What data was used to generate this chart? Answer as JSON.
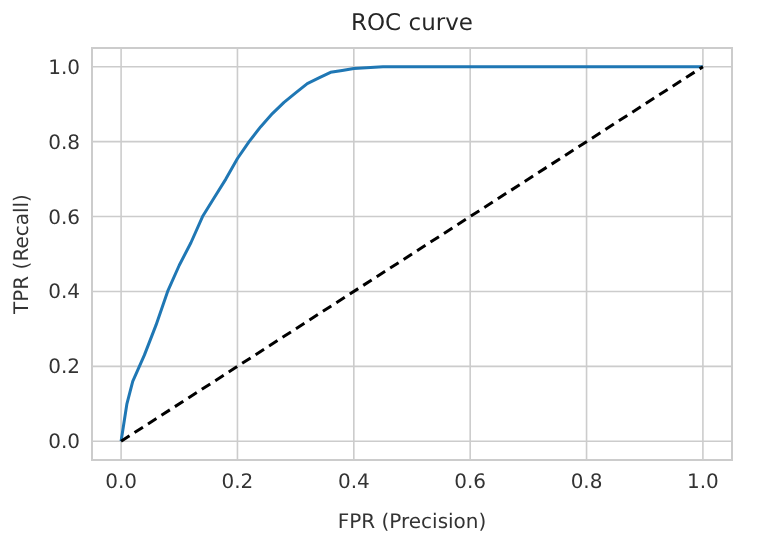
{
  "chart_data": {
    "type": "line",
    "title": "ROC curve",
    "xlabel": "FPR (Precision)",
    "ylabel": "TPR (Recall)",
    "xlim": [
      -0.05,
      1.05
    ],
    "ylim": [
      -0.05,
      1.05
    ],
    "xticks": [
      {
        "value": 0,
        "label": "0.0"
      },
      {
        "value": 0.2,
        "label": "0.2"
      },
      {
        "value": 0.4,
        "label": "0.4"
      },
      {
        "value": 0.6,
        "label": "0.6"
      },
      {
        "value": 0.8,
        "label": "0.8"
      },
      {
        "value": 1,
        "label": "1.0"
      }
    ],
    "yticks": [
      {
        "value": 0,
        "label": "0.0"
      },
      {
        "value": 0.2,
        "label": "0.2"
      },
      {
        "value": 0.4,
        "label": "0.4"
      },
      {
        "value": 0.6,
        "label": "0.6"
      },
      {
        "value": 0.8,
        "label": "0.8"
      },
      {
        "value": 1,
        "label": "1.0"
      }
    ],
    "grid": true,
    "series": [
      {
        "color": "#1f77b4",
        "line_style": "solid",
        "x": [
          0,
          0.01,
          0.02,
          0.04,
          0.06,
          0.08,
          0.1,
          0.12,
          0.14,
          0.16,
          0.18,
          0.2,
          0.22,
          0.24,
          0.26,
          0.28,
          0.3,
          0.32,
          0.34,
          0.36,
          0.38,
          0.4,
          0.45,
          1
        ],
        "values": [
          0,
          0.1,
          0.16,
          0.23,
          0.31,
          0.4,
          0.47,
          0.53,
          0.6,
          0.65,
          0.7,
          0.755,
          0.8,
          0.84,
          0.875,
          0.905,
          0.93,
          0.955,
          0.97,
          0.985,
          0.99,
          0.995,
          1,
          1
        ]
      },
      {
        "color": "#000000",
        "line_style": "dashed",
        "x": [
          0,
          1
        ],
        "values": [
          0,
          1
        ]
      }
    ]
  }
}
